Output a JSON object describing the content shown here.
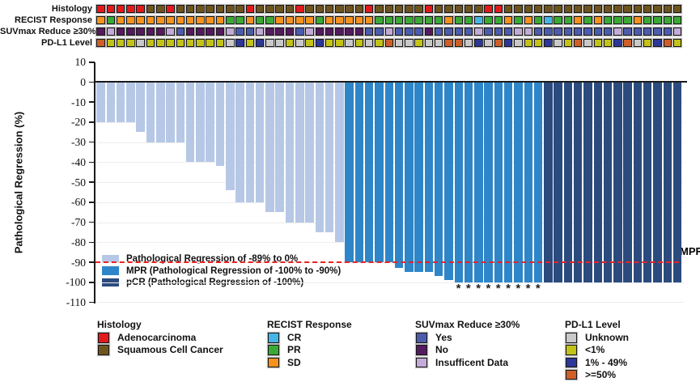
{
  "tracks": {
    "rows": [
      {
        "label": "Histology",
        "name": "histology",
        "legend_group": 0,
        "values": [
          "A",
          "A",
          "A",
          "A",
          "A",
          "S",
          "S",
          "A",
          "S",
          "S",
          "S",
          "S",
          "S",
          "S",
          "S",
          "A",
          "S",
          "S",
          "S",
          "S",
          "A",
          "S",
          "S",
          "S",
          "S",
          "S",
          "S",
          "A",
          "S",
          "S",
          "S",
          "S",
          "S",
          "A",
          "S",
          "S",
          "S",
          "S",
          "S",
          "A",
          "A",
          "S",
          "S",
          "S",
          "S",
          "S",
          "S",
          "S",
          "S",
          "S",
          "S",
          "S",
          "S",
          "S",
          "S",
          "S",
          "S",
          "S",
          "S"
        ]
      },
      {
        "label": "RECIST Response",
        "name": "recist-response",
        "legend_group": 1,
        "values": [
          "SD",
          "PR",
          "SD",
          "SD",
          "SD",
          "SD",
          "SD",
          "SD",
          "SD",
          "SD",
          "SD",
          "SD",
          "SD",
          "PR",
          "PR",
          "SD",
          "PR",
          "PR",
          "SD",
          "SD",
          "SD",
          "SD",
          "PR",
          "SD",
          "SD",
          "SD",
          "SD",
          "SD",
          "PR",
          "PR",
          "PR",
          "PR",
          "PR",
          "PR",
          "PR",
          "SD",
          "PR",
          "PR",
          "CR",
          "PR",
          "PR",
          "SD",
          "PR",
          "SD",
          "PR",
          "CR",
          "PR",
          "PR",
          "SD",
          "PR",
          "SD",
          "PR",
          "PR",
          "PR",
          "SD",
          "PR",
          "PR",
          "PR",
          "PR"
        ]
      },
      {
        "label": "SUVmax Reduce ≥30%",
        "name": "suvmax-reduce",
        "legend_group": 2,
        "values": [
          "No",
          "ID",
          "No",
          "No",
          "No",
          "No",
          "No",
          "ID",
          "Yes",
          "No",
          "No",
          "No",
          "No",
          "ID",
          "Yes",
          "Yes",
          "ID",
          "No",
          "No",
          "No",
          "Yes",
          "ID",
          "No",
          "No",
          "No",
          "No",
          "No",
          "Yes",
          "Yes",
          "ID",
          "Yes",
          "Yes",
          "Yes",
          "No",
          "Yes",
          "Yes",
          "Yes",
          "Yes",
          "ID",
          "Yes",
          "Yes",
          "Yes",
          "ID",
          "ID",
          "Yes",
          "Yes",
          "Yes",
          "Yes",
          "Yes",
          "Yes",
          "Yes",
          "Yes",
          "ID",
          "Yes",
          "Yes",
          "Yes",
          "Yes",
          "Yes",
          "ID"
        ]
      },
      {
        "label": "PD-L1 Level",
        "name": "pdl1-level",
        "legend_group": 3,
        "values": [
          "H",
          "L",
          "L",
          "L",
          "U",
          "L",
          "L",
          "L",
          "L",
          "L",
          "L",
          "L",
          "L",
          "U",
          "M",
          "L",
          "M",
          "U",
          "U",
          "L",
          "U",
          "L",
          "M",
          "L",
          "L",
          "U",
          "L",
          "U",
          "L",
          "H",
          "U",
          "U",
          "L",
          "U",
          "U",
          "H",
          "H",
          "U",
          "M",
          "U",
          "H",
          "M",
          "U",
          "L",
          "L",
          "M",
          "U",
          "L",
          "H",
          "U",
          "L",
          "L",
          "M",
          "H",
          "U",
          "L",
          "M",
          "H",
          "L"
        ]
      }
    ]
  },
  "chart_data": {
    "type": "bar",
    "title": "",
    "xlabel": "",
    "ylabel": "Pathological Regression (%)",
    "ylim": [
      -110,
      10
    ],
    "yticks": [
      10,
      0,
      -10,
      -20,
      -30,
      -40,
      -50,
      -60,
      -70,
      -80,
      -90,
      -100,
      -110
    ],
    "grid": "horizontal-light",
    "n_bars": 59,
    "values": [
      -20,
      -20,
      -20,
      -20,
      -25,
      -30,
      -30,
      -30,
      -30,
      -40,
      -40,
      -40,
      -42,
      -54,
      -60,
      -60,
      -60,
      -65,
      -65,
      -70,
      -70,
      -70,
      -75,
      -75,
      -80,
      -90,
      -90,
      -90,
      -90,
      -90,
      -93,
      -95,
      -95,
      -95,
      -97,
      -99,
      -100,
      -100,
      -100,
      -100,
      -100,
      -100,
      -100,
      -100,
      -100,
      -100,
      -100,
      -100,
      -100,
      -100,
      -100,
      -100,
      -100,
      -100,
      -100,
      -100,
      -100,
      -100,
      -100
    ],
    "bar_class": [
      "reg",
      "reg",
      "reg",
      "reg",
      "reg",
      "reg",
      "reg",
      "reg",
      "reg",
      "reg",
      "reg",
      "reg",
      "reg",
      "reg",
      "reg",
      "reg",
      "reg",
      "reg",
      "reg",
      "reg",
      "reg",
      "reg",
      "reg",
      "reg",
      "reg",
      "mpr",
      "mpr",
      "mpr",
      "mpr",
      "mpr",
      "mpr",
      "mpr",
      "mpr",
      "mpr",
      "mpr",
      "mpr",
      "mpr",
      "mpr",
      "mpr",
      "mpr",
      "mpr",
      "mpr",
      "mpr",
      "mpr",
      "mpr",
      "pcr",
      "pcr",
      "pcr",
      "pcr",
      "pcr",
      "pcr",
      "pcr",
      "pcr",
      "pcr",
      "pcr",
      "pcr",
      "pcr",
      "pcr",
      "pcr"
    ],
    "class_colors": {
      "reg": "#b6c8e6",
      "mpr": "#2e86c8",
      "pcr": "#2b4b7e"
    },
    "asterisk_bars": [
      36,
      37,
      38,
      39,
      40,
      41,
      42,
      43,
      44
    ],
    "asterisk_symbol": "*",
    "reference_line": {
      "y": -90,
      "label": "MPR",
      "color": "#ec2224",
      "style": "dashed"
    },
    "legend_position": "inside-bottom-left",
    "legend": [
      {
        "label": "Pathological Regression of -89% to 0%",
        "color": "#b6c8e6"
      },
      {
        "label": "MPR (Pathological Regression of -100% to -90%)",
        "color": "#2e86c8"
      },
      {
        "label": "pCR (Pathological Regression of -100%)",
        "color": "#2b4b7e"
      }
    ]
  },
  "bottom_legend": {
    "groups": [
      {
        "title": "Histology",
        "items": [
          {
            "code": "A",
            "label": "Adenocarcinoma",
            "color": "#e31a1c"
          },
          {
            "code": "S",
            "label": "Squamous Cell Cancer",
            "color": "#6e541e"
          }
        ]
      },
      {
        "title": "RECIST Response",
        "items": [
          {
            "code": "CR",
            "label": "CR",
            "color": "#45b5e6"
          },
          {
            "code": "PR",
            "label": "PR",
            "color": "#3aaa35"
          },
          {
            "code": "SD",
            "label": "SD",
            "color": "#f6921e"
          }
        ]
      },
      {
        "title": "SUVmax Reduce ≥30%",
        "items": [
          {
            "code": "Yes",
            "label": "Yes",
            "color": "#4c5cad"
          },
          {
            "code": "No",
            "label": "No",
            "color": "#541a5e"
          },
          {
            "code": "ID",
            "label": "Insufficent Data",
            "color": "#c3abd8"
          }
        ]
      },
      {
        "title": "PD-L1 Level",
        "items": [
          {
            "code": "U",
            "label": "Unknown",
            "color": "#c9c9c9"
          },
          {
            "code": "L",
            "label": "<1%",
            "color": "#c2c316"
          },
          {
            "code": "M",
            "label": "1% - 49%",
            "color": "#2c3797"
          },
          {
            "code": "H",
            "label": ">=50%",
            "color": "#ce5f28"
          }
        ]
      }
    ]
  }
}
